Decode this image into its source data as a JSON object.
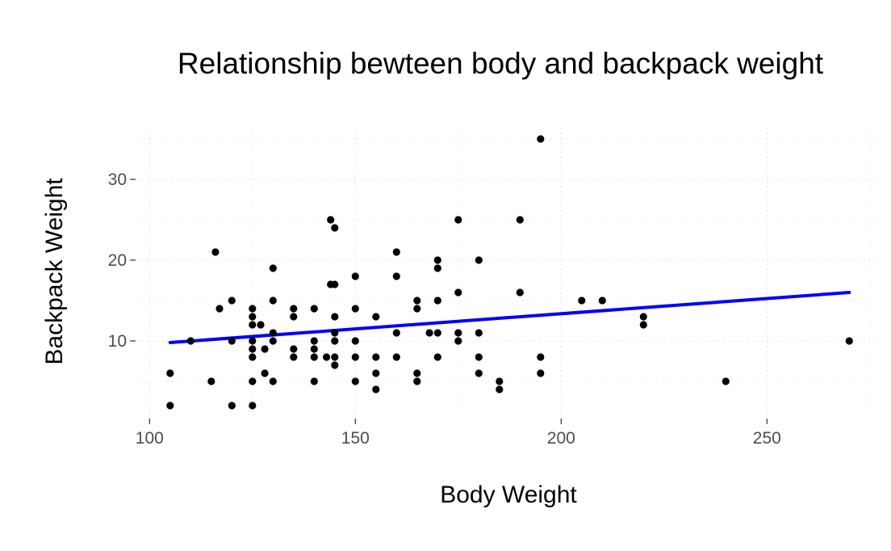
{
  "chart_data": {
    "type": "scatter",
    "title": "Relationship bewteen body and backpack weight",
    "xlabel": "Body Weight",
    "ylabel": "Backpack Weight",
    "xlim": [
      97,
      277
    ],
    "ylim": [
      0.6,
      36.4
    ],
    "x_ticks": [
      100,
      150,
      200,
      250
    ],
    "y_ticks": [
      10,
      20,
      30
    ],
    "x_minor": [
      125,
      175,
      225,
      275
    ],
    "y_minor": [
      5,
      15,
      25,
      35
    ],
    "grid": "dotted",
    "trend_line": {
      "color": "#0000ff",
      "x": [
        105,
        270
      ],
      "y": [
        9.8,
        16.0
      ]
    },
    "points": [
      [
        105,
        6
      ],
      [
        105,
        2
      ],
      [
        110,
        10
      ],
      [
        115,
        5
      ],
      [
        116,
        21
      ],
      [
        117,
        14
      ],
      [
        120,
        15
      ],
      [
        120,
        10
      ],
      [
        120,
        2
      ],
      [
        125,
        14
      ],
      [
        125,
        13
      ],
      [
        125,
        12
      ],
      [
        125,
        10
      ],
      [
        125,
        9
      ],
      [
        125,
        8
      ],
      [
        125,
        5
      ],
      [
        125,
        2
      ],
      [
        127,
        12
      ],
      [
        128,
        9
      ],
      [
        128,
        6
      ],
      [
        130,
        19
      ],
      [
        130,
        15
      ],
      [
        130,
        11
      ],
      [
        130,
        10
      ],
      [
        130,
        5
      ],
      [
        135,
        14
      ],
      [
        135,
        13
      ],
      [
        135,
        9
      ],
      [
        135,
        8
      ],
      [
        140,
        14
      ],
      [
        140,
        10
      ],
      [
        140,
        9
      ],
      [
        140,
        8
      ],
      [
        140,
        5
      ],
      [
        143,
        8
      ],
      [
        144,
        25
      ],
      [
        144,
        17
      ],
      [
        145,
        24
      ],
      [
        145,
        17
      ],
      [
        145,
        13
      ],
      [
        145,
        11
      ],
      [
        145,
        10
      ],
      [
        145,
        8
      ],
      [
        145,
        7
      ],
      [
        150,
        18
      ],
      [
        150,
        14
      ],
      [
        150,
        10
      ],
      [
        150,
        8
      ],
      [
        150,
        5
      ],
      [
        155,
        13
      ],
      [
        155,
        8
      ],
      [
        155,
        6
      ],
      [
        155,
        4
      ],
      [
        160,
        21
      ],
      [
        160,
        18
      ],
      [
        160,
        11
      ],
      [
        160,
        8
      ],
      [
        165,
        15
      ],
      [
        165,
        14
      ],
      [
        165,
        6
      ],
      [
        165,
        5
      ],
      [
        168,
        11
      ],
      [
        170,
        20
      ],
      [
        170,
        19
      ],
      [
        170,
        15
      ],
      [
        170,
        11
      ],
      [
        170,
        8
      ],
      [
        175,
        25
      ],
      [
        175,
        16
      ],
      [
        175,
        11
      ],
      [
        175,
        10
      ],
      [
        180,
        20
      ],
      [
        180,
        11
      ],
      [
        180,
        8
      ],
      [
        180,
        6
      ],
      [
        185,
        5
      ],
      [
        185,
        4
      ],
      [
        190,
        25
      ],
      [
        190,
        16
      ],
      [
        195,
        35
      ],
      [
        195,
        8
      ],
      [
        195,
        6
      ],
      [
        205,
        15
      ],
      [
        210,
        15
      ],
      [
        220,
        13
      ],
      [
        220,
        12
      ],
      [
        240,
        5
      ],
      [
        270,
        10
      ]
    ]
  }
}
